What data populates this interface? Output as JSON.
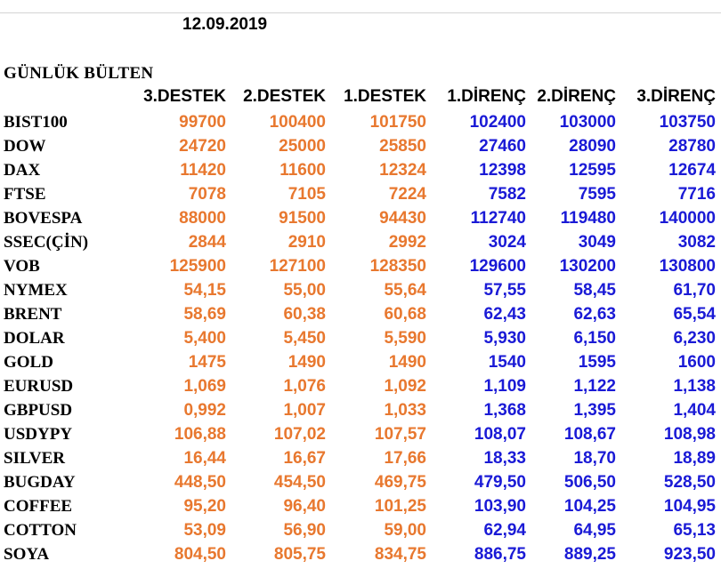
{
  "date": "12.09.2019",
  "title": "GÜNLÜK BÜLTEN",
  "columns": [
    "3.DESTEK",
    "2.DESTEK",
    "1.DESTEK",
    "1.DİRENÇ",
    "2.DİRENÇ",
    "3.DİRENÇ"
  ],
  "colors": {
    "support": "#e8782f",
    "resistance": "#1a1ad6"
  },
  "rows": [
    {
      "name": "BIST100",
      "values": [
        "99700",
        "100400",
        "101750",
        "102400",
        "103000",
        "103750"
      ]
    },
    {
      "name": "DOW",
      "values": [
        "24720",
        "25000",
        "25850",
        "27460",
        "28090",
        "28780"
      ]
    },
    {
      "name": "DAX",
      "values": [
        "11420",
        "11600",
        "12324",
        "12398",
        "12595",
        "12674"
      ]
    },
    {
      "name": "FTSE",
      "values": [
        "7078",
        "7105",
        "7224",
        "7582",
        "7595",
        "7716"
      ]
    },
    {
      "name": "BOVESPA",
      "values": [
        "88000",
        "91500",
        "94430",
        "112740",
        "119480",
        "140000"
      ]
    },
    {
      "name": "SSEC(ÇİN)",
      "values": [
        "2844",
        "2910",
        "2992",
        "3024",
        "3049",
        "3082"
      ]
    },
    {
      "name": "VOB",
      "values": [
        "125900",
        "127100",
        "128350",
        "129600",
        "130200",
        "130800"
      ]
    },
    {
      "name": "NYMEX",
      "values": [
        "54,15",
        "55,00",
        "55,64",
        "57,55",
        "58,45",
        "61,70"
      ]
    },
    {
      "name": "BRENT",
      "values": [
        "58,69",
        "60,38",
        "60,68",
        "62,43",
        "62,63",
        "65,54"
      ]
    },
    {
      "name": "DOLAR",
      "values": [
        "5,400",
        "5,450",
        "5,590",
        "5,930",
        "6,150",
        "6,230"
      ]
    },
    {
      "name": "GOLD",
      "values": [
        "1475",
        "1490",
        "1490",
        "1540",
        "1595",
        "1600"
      ]
    },
    {
      "name": "EURUSD",
      "values": [
        "1,069",
        "1,076",
        "1,092",
        "1,109",
        "1,122",
        "1,138"
      ]
    },
    {
      "name": "GBPUSD",
      "values": [
        "0,992",
        "1,007",
        "1,033",
        "1,368",
        "1,395",
        "1,404"
      ]
    },
    {
      "name": "USDYPY",
      "values": [
        "106,88",
        "107,02",
        "107,57",
        "108,07",
        "108,67",
        "108,98"
      ]
    },
    {
      "name": "SILVER",
      "values": [
        "16,44",
        "16,67",
        "17,66",
        "18,33",
        "18,70",
        "18,89"
      ]
    },
    {
      "name": "BUGDAY",
      "values": [
        "448,50",
        "454,50",
        "469,75",
        "479,50",
        "506,50",
        "528,50"
      ]
    },
    {
      "name": "COFFEE",
      "values": [
        "95,20",
        "96,40",
        "101,25",
        "103,90",
        "104,25",
        "104,95"
      ]
    },
    {
      "name": "COTTON",
      "values": [
        "53,09",
        "56,90",
        "59,00",
        "62,94",
        "64,95",
        "65,13"
      ]
    },
    {
      "name": "SOYA",
      "values": [
        "804,50",
        "805,75",
        "834,75",
        "886,75",
        "889,25",
        "923,50"
      ]
    }
  ]
}
